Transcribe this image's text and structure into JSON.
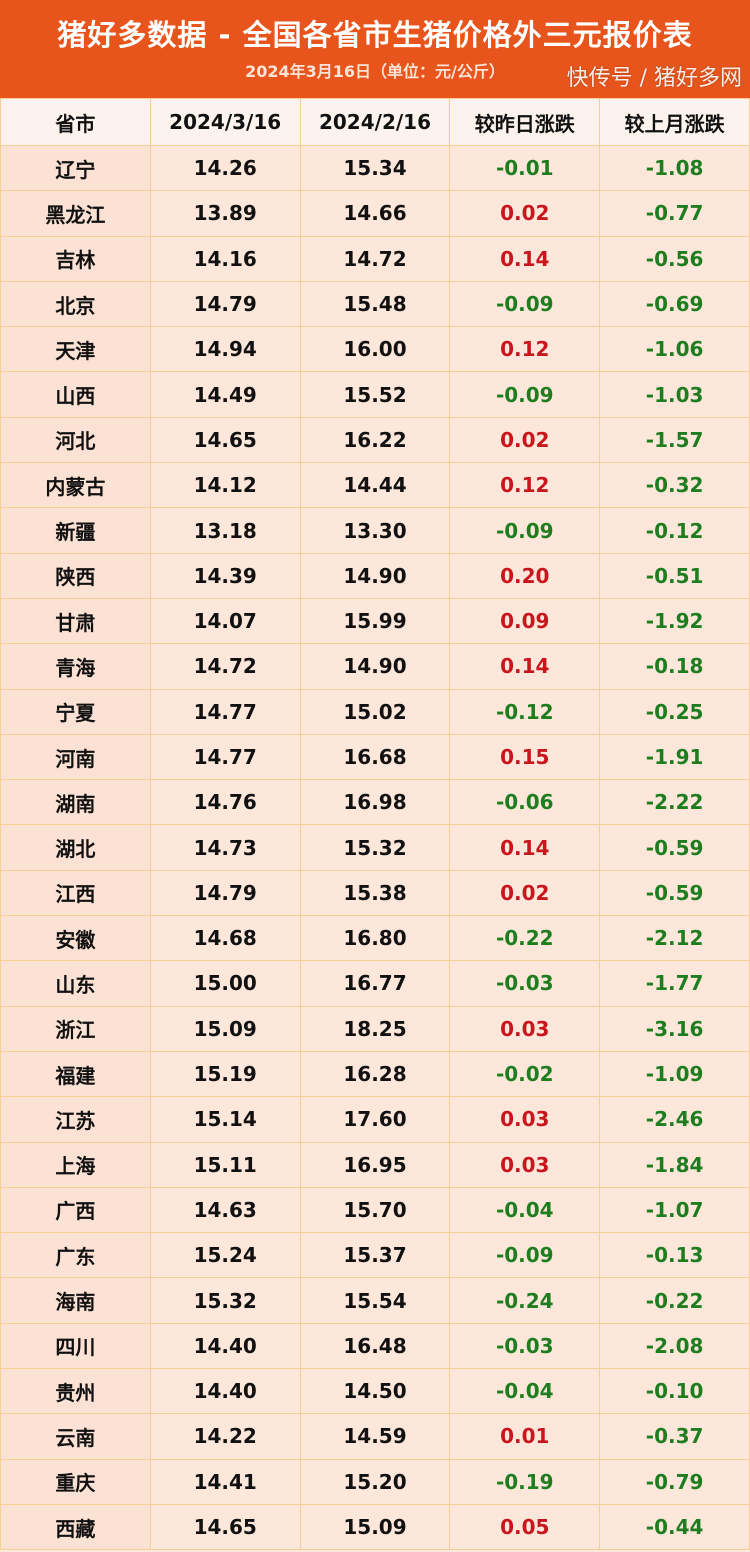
{
  "header": {
    "title": "猪好多数据 - 全国各省市生猪价格外三元报价表",
    "subtitle": "2024年3月16日（单位：元/公斤）"
  },
  "columns": [
    "省市",
    "2024/3/16",
    "2024/2/16",
    "较昨日涨跌",
    "较上月涨跌"
  ],
  "colors": {
    "header_bg": "#e8551c",
    "up": "#c8161d",
    "down": "#1e7d1e"
  },
  "rows": [
    [
      "辽宁",
      "14.26",
      "15.34",
      "-0.01",
      "-1.08"
    ],
    [
      "黑龙江",
      "13.89",
      "14.66",
      "0.02",
      "-0.77"
    ],
    [
      "吉林",
      "14.16",
      "14.72",
      "0.14",
      "-0.56"
    ],
    [
      "北京",
      "14.79",
      "15.48",
      "-0.09",
      "-0.69"
    ],
    [
      "天津",
      "14.94",
      "16.00",
      "0.12",
      "-1.06"
    ],
    [
      "山西",
      "14.49",
      "15.52",
      "-0.09",
      "-1.03"
    ],
    [
      "河北",
      "14.65",
      "16.22",
      "0.02",
      "-1.57"
    ],
    [
      "内蒙古",
      "14.12",
      "14.44",
      "0.12",
      "-0.32"
    ],
    [
      "新疆",
      "13.18",
      "13.30",
      "-0.09",
      "-0.12"
    ],
    [
      "陕西",
      "14.39",
      "14.90",
      "0.20",
      "-0.51"
    ],
    [
      "甘肃",
      "14.07",
      "15.99",
      "0.09",
      "-1.92"
    ],
    [
      "青海",
      "14.72",
      "14.90",
      "0.14",
      "-0.18"
    ],
    [
      "宁夏",
      "14.77",
      "15.02",
      "-0.12",
      "-0.25"
    ],
    [
      "河南",
      "14.77",
      "16.68",
      "0.15",
      "-1.91"
    ],
    [
      "湖南",
      "14.76",
      "16.98",
      "-0.06",
      "-2.22"
    ],
    [
      "湖北",
      "14.73",
      "15.32",
      "0.14",
      "-0.59"
    ],
    [
      "江西",
      "14.79",
      "15.38",
      "0.02",
      "-0.59"
    ],
    [
      "安徽",
      "14.68",
      "16.80",
      "-0.22",
      "-2.12"
    ],
    [
      "山东",
      "15.00",
      "16.77",
      "-0.03",
      "-1.77"
    ],
    [
      "浙江",
      "15.09",
      "18.25",
      "0.03",
      "-3.16"
    ],
    [
      "福建",
      "15.19",
      "16.28",
      "-0.02",
      "-1.09"
    ],
    [
      "江苏",
      "15.14",
      "17.60",
      "0.03",
      "-2.46"
    ],
    [
      "上海",
      "15.11",
      "16.95",
      "0.03",
      "-1.84"
    ],
    [
      "广西",
      "14.63",
      "15.70",
      "-0.04",
      "-1.07"
    ],
    [
      "广东",
      "15.24",
      "15.37",
      "-0.09",
      "-0.13"
    ],
    [
      "海南",
      "15.32",
      "15.54",
      "-0.24",
      "-0.22"
    ],
    [
      "四川",
      "14.40",
      "16.48",
      "-0.03",
      "-2.08"
    ],
    [
      "贵州",
      "14.40",
      "14.50",
      "-0.04",
      "-0.10"
    ],
    [
      "云南",
      "14.22",
      "14.59",
      "0.01",
      "-0.37"
    ],
    [
      "重庆",
      "14.41",
      "15.20",
      "-0.19",
      "-0.79"
    ],
    [
      "西藏",
      "14.65",
      "15.09",
      "0.05",
      "-0.44"
    ]
  ],
  "watermark": "快传号 / 猪好多网"
}
